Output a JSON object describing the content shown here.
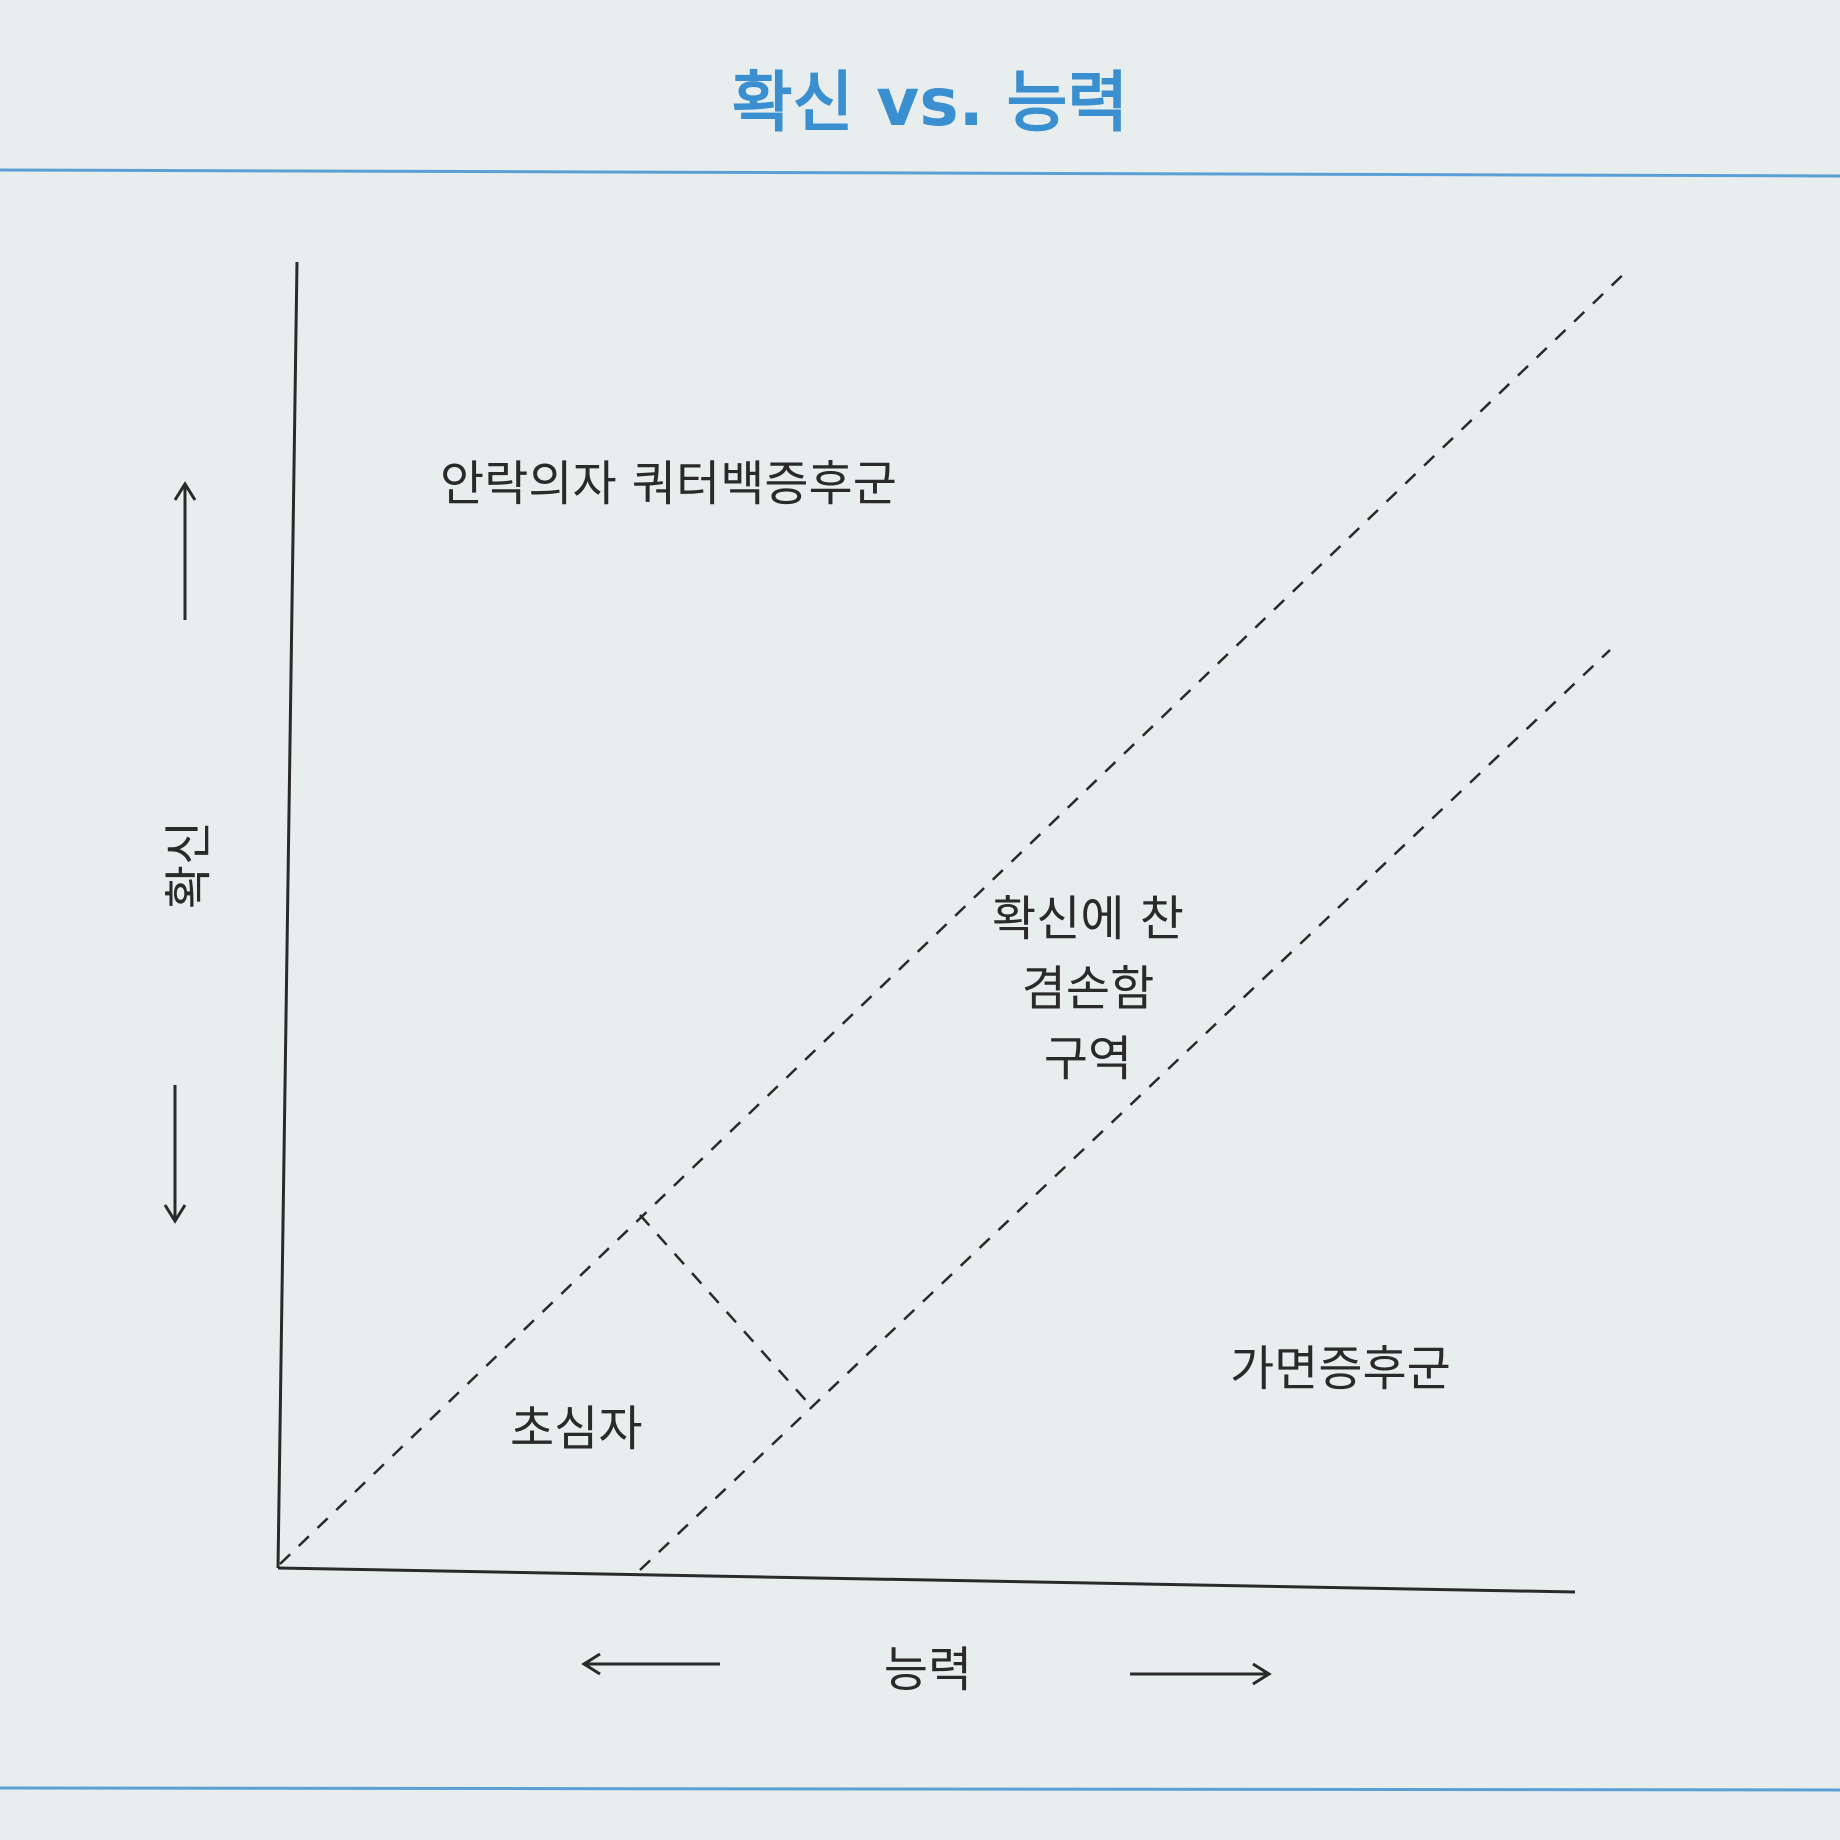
{
  "title": "확신 vs. 능력",
  "axes": {
    "y_label": "확신",
    "x_label": "능력"
  },
  "regions": {
    "armchair": "안락의자 쿼터백증후군",
    "humble_line1": "확신에 찬",
    "humble_line2": "겸손함",
    "humble_line3": "구역",
    "impostor": "가면증후군",
    "beginner": "초심자"
  },
  "colors": {
    "title": "#3a8fd0",
    "rule": "#5aa0d6",
    "ink": "#2a2a2a",
    "background": "#e8eeee"
  }
}
